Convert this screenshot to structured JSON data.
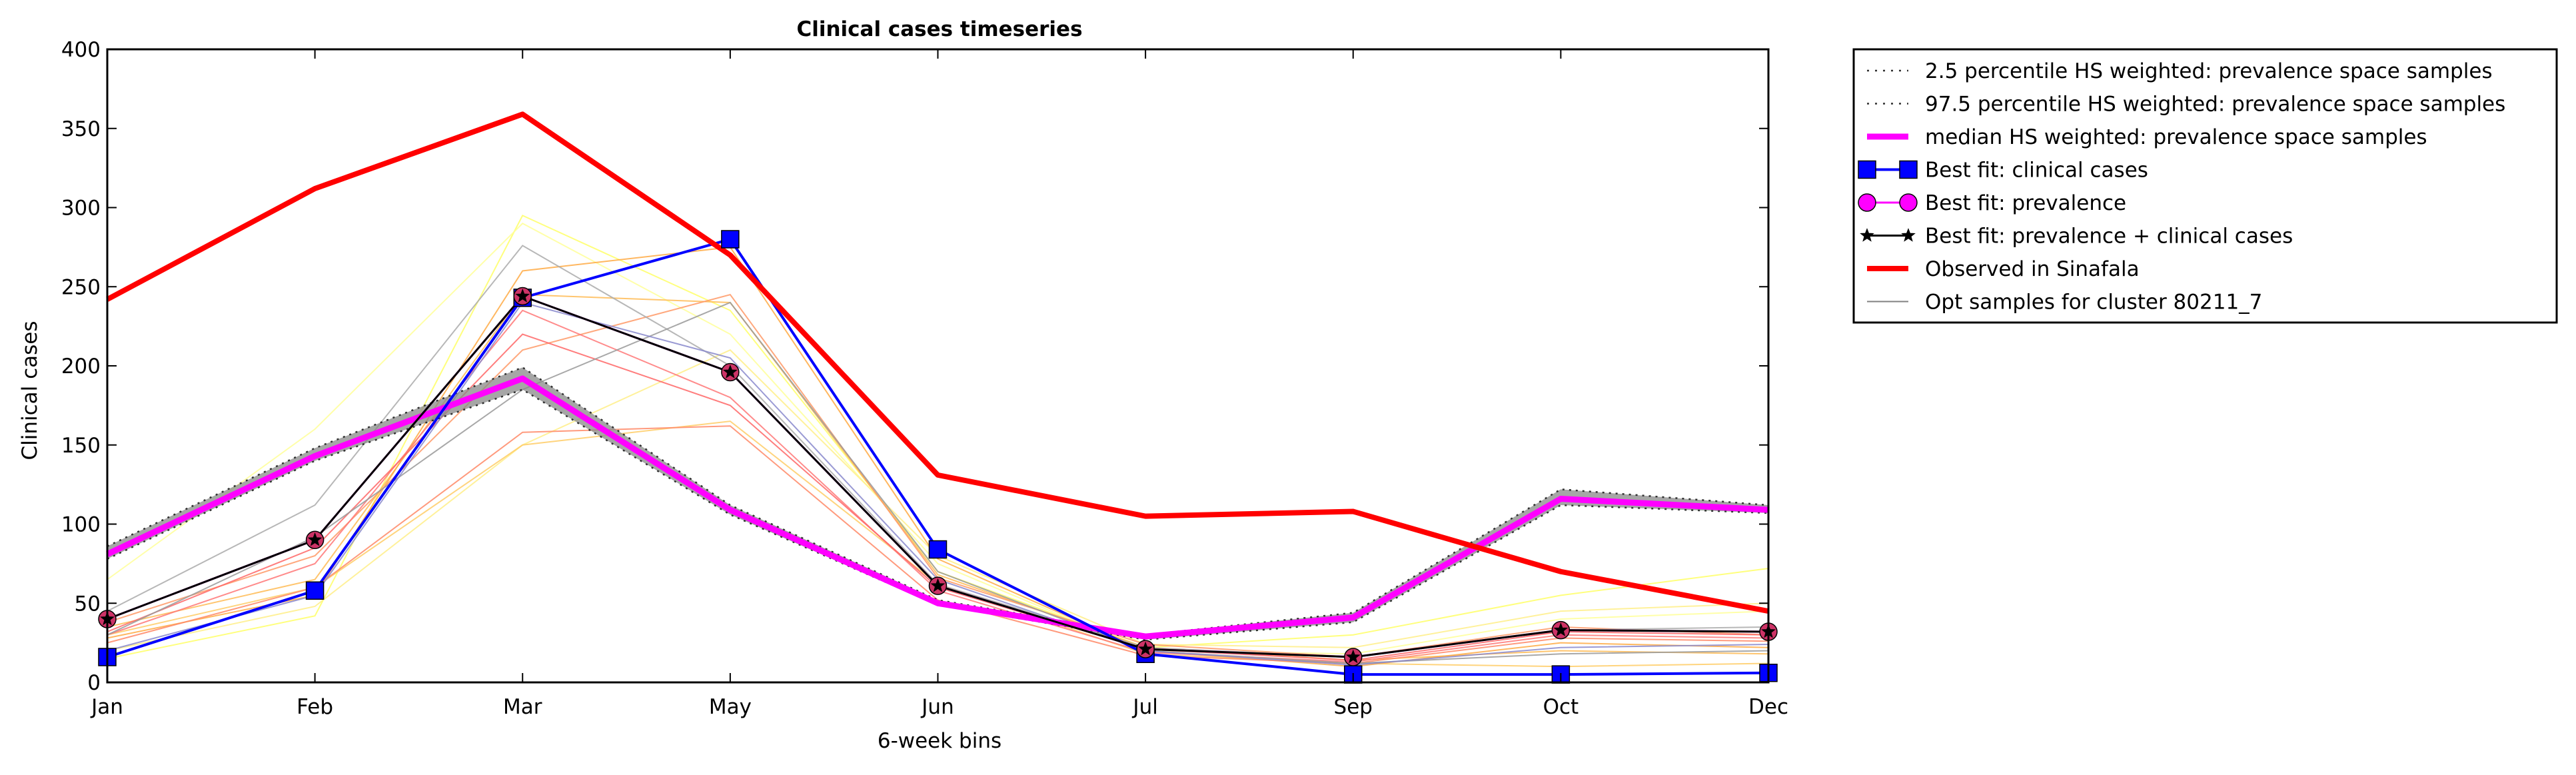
{
  "chart_data": {
    "type": "line",
    "title": "Clinical cases timeseries",
    "xlabel": "6-week bins",
    "ylabel": "Clinical cases",
    "categories": [
      "Jan",
      "Feb",
      "Mar",
      "May",
      "Jun",
      "Jul",
      "Sep",
      "Oct",
      "Dec"
    ],
    "ylim": [
      0,
      400
    ],
    "yticks": [
      0,
      50,
      100,
      150,
      200,
      250,
      300,
      350,
      400
    ],
    "grid": false,
    "legend_position": "outside-top-right",
    "series": [
      {
        "name": "2.5 percentile HS weighted: prevalence space samples",
        "style": "dotted",
        "color": "#808080",
        "values": [
          78,
          140,
          185,
          106,
          49,
          27,
          38,
          112,
          107
        ]
      },
      {
        "name": "97.5 percentile HS weighted: prevalence space samples",
        "style": "dotted",
        "color": "#808080",
        "values": [
          86,
          148,
          199,
          112,
          52,
          30,
          44,
          122,
          112
        ]
      },
      {
        "name": "median HS weighted: prevalence space samples",
        "style": "solid",
        "color": "#ff00ff",
        "values": [
          81,
          143,
          192,
          109,
          50,
          29,
          41,
          116,
          109
        ]
      },
      {
        "name": "Best fit: clinical cases",
        "style": "solid",
        "marker": "square",
        "color": "#0000ff",
        "values": [
          16,
          58,
          243,
          280,
          84,
          18,
          5,
          5,
          6
        ]
      },
      {
        "name": "Best fit: prevalence",
        "style": "solid",
        "marker": "circle",
        "color": "#ff00ff",
        "values": [
          40,
          90,
          244,
          196,
          61,
          21,
          16,
          33,
          32
        ]
      },
      {
        "name": "Best fit: prevalence + clinical cases",
        "style": "solid",
        "marker": "star",
        "color": "#000000",
        "values": [
          40,
          90,
          244,
          196,
          61,
          21,
          16,
          33,
          32
        ]
      },
      {
        "name": "Observed in Sinafala",
        "style": "solid",
        "color": "#ff0000",
        "values": [
          242,
          312,
          359,
          270,
          131,
          105,
          108,
          70,
          45
        ]
      },
      {
        "name": "Opt samples for cluster 80211_7",
        "style": "solid",
        "color": "#808080",
        "values": [
          40,
          110,
          276,
          240,
          72,
          22,
          15,
          30,
          35
        ]
      }
    ],
    "opt_samples": [
      {
        "color": "#ffff66",
        "values": [
          15,
          42,
          295,
          235,
          70,
          22,
          30,
          55,
          72
        ]
      },
      {
        "color": "#ffff99",
        "values": [
          65,
          160,
          290,
          220,
          75,
          20,
          18,
          40,
          45
        ]
      },
      {
        "color": "#ffee88",
        "values": [
          20,
          48,
          150,
          210,
          80,
          24,
          22,
          45,
          50
        ]
      },
      {
        "color": "#ffcc66",
        "values": [
          30,
          60,
          150,
          165,
          62,
          18,
          12,
          10,
          12
        ]
      },
      {
        "color": "#ffbb55",
        "values": [
          35,
          65,
          245,
          240,
          68,
          22,
          14,
          20,
          18
        ]
      },
      {
        "color": "#ffaa44",
        "values": [
          28,
          55,
          260,
          275,
          78,
          20,
          10,
          25,
          22
        ]
      },
      {
        "color": "#ff9966",
        "values": [
          38,
          80,
          210,
          245,
          66,
          24,
          16,
          35,
          30
        ]
      },
      {
        "color": "#ff7777",
        "values": [
          30,
          75,
          235,
          180,
          58,
          19,
          13,
          30,
          28
        ]
      },
      {
        "color": "#ff8866",
        "values": [
          25,
          60,
          158,
          162,
          52,
          17,
          12,
          28,
          26
        ]
      },
      {
        "color": "#ff6666",
        "values": [
          32,
          85,
          220,
          175,
          60,
          21,
          14,
          32,
          30
        ]
      },
      {
        "color": "#aaaaaa",
        "values": [
          45,
          112,
          276,
          200,
          62,
          22,
          16,
          33,
          35
        ]
      },
      {
        "color": "#999999",
        "values": [
          30,
          92,
          185,
          240,
          70,
          20,
          12,
          18,
          20
        ]
      },
      {
        "color": "#8888cc",
        "values": [
          20,
          55,
          240,
          205,
          65,
          20,
          11,
          22,
          24
        ]
      }
    ]
  }
}
